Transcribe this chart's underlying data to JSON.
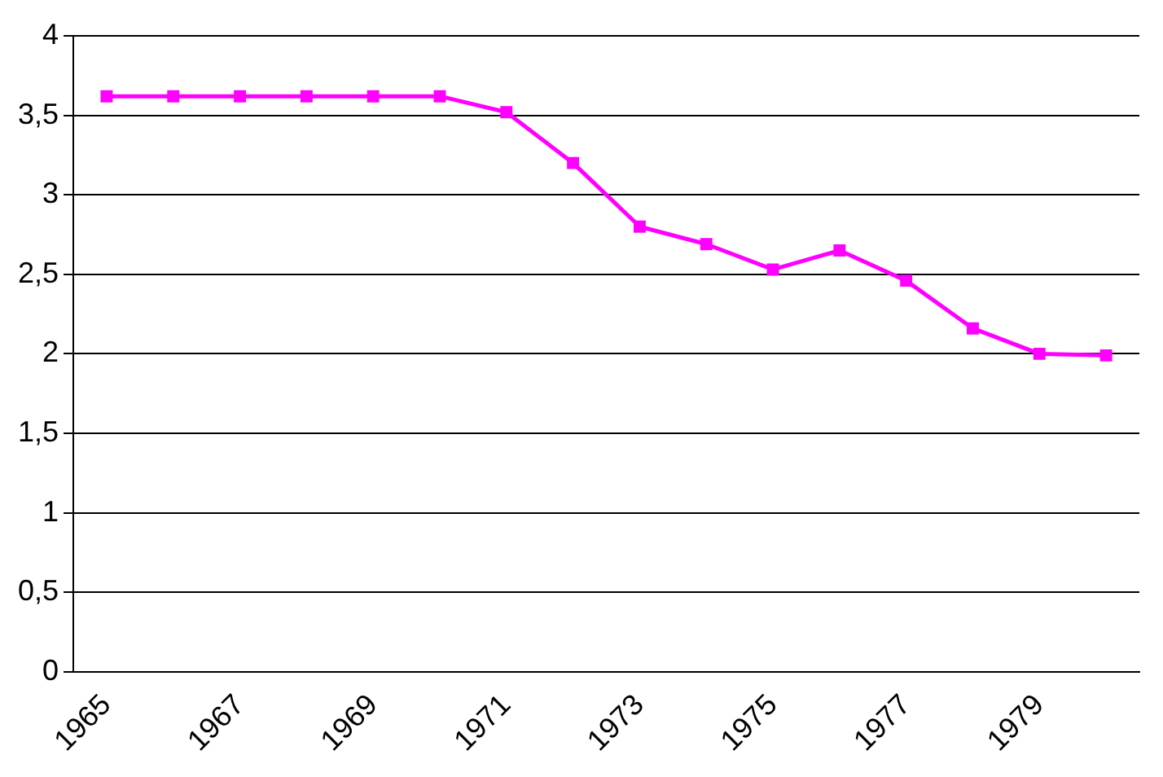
{
  "chart_data": {
    "type": "line",
    "categories": [
      "1965",
      null,
      "1967",
      null,
      "1969",
      null,
      "1971",
      null,
      "1973",
      null,
      "1975",
      null,
      "1977",
      null,
      "1979",
      null
    ],
    "series": [
      {
        "color": "#ff00ff",
        "values": [
          3.62,
          3.62,
          3.62,
          3.62,
          3.62,
          3.62,
          3.52,
          3.2,
          2.8,
          2.69,
          2.53,
          2.65,
          2.46,
          2.16,
          2.0,
          1.99
        ]
      }
    ],
    "ylim": [
      0,
      4
    ],
    "yticks": [
      0,
      {
        "value": 0.5,
        "label": "0,5"
      },
      1,
      {
        "value": 1.5,
        "label": "1,5"
      },
      2,
      {
        "value": 2.5,
        "label": "2,5"
      },
      3,
      {
        "value": 3.5,
        "label": "3,5"
      },
      4
    ],
    "grid": "y",
    "legend": false,
    "marker": "square",
    "line_style": "solid"
  }
}
